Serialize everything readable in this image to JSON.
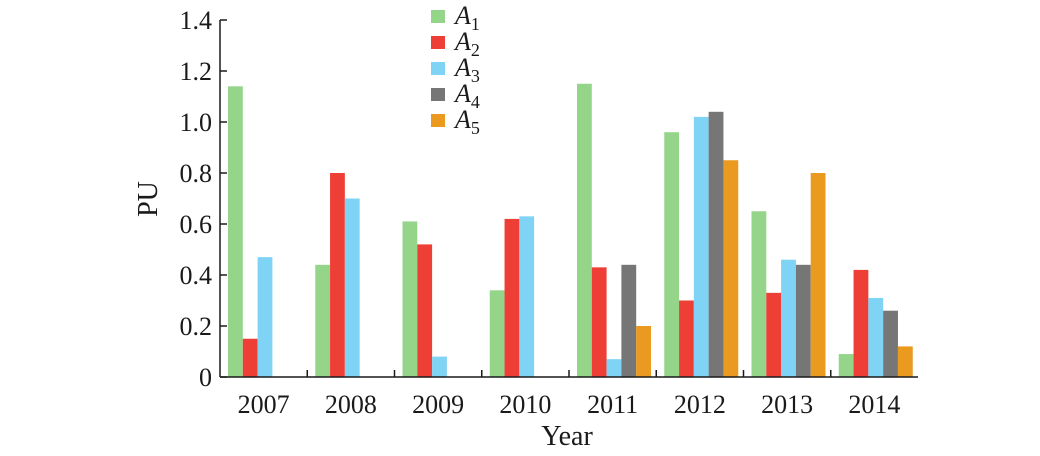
{
  "chart_data": {
    "type": "bar",
    "xlabel": "Year",
    "ylabel": "PU",
    "ylim": [
      0,
      1.4
    ],
    "yticks": [
      0,
      0.2,
      0.4,
      0.6,
      0.8,
      1.0,
      1.2,
      1.4
    ],
    "ytick_labels": [
      "0",
      "0.2",
      "0.4",
      "0.6",
      "0.8",
      "1.0",
      "1.2",
      "1.4"
    ],
    "categories": [
      "2007",
      "2008",
      "2009",
      "2010",
      "2011",
      "2012",
      "2013",
      "2014"
    ],
    "legend_position": "top-center",
    "grid": false,
    "series": [
      {
        "name": "A",
        "subscript": "1",
        "color": "#95d58a",
        "values": [
          1.14,
          0.44,
          0.61,
          0.34,
          1.15,
          0.96,
          0.65,
          0.09
        ]
      },
      {
        "name": "A",
        "subscript": "2",
        "color": "#ee3f36",
        "values": [
          0.15,
          0.8,
          0.52,
          0.62,
          0.43,
          0.3,
          0.33,
          0.42
        ]
      },
      {
        "name": "A",
        "subscript": "3",
        "color": "#7fd3f5",
        "values": [
          0.47,
          0.7,
          0.08,
          0.63,
          0.07,
          1.02,
          0.46,
          0.31
        ]
      },
      {
        "name": "A",
        "subscript": "4",
        "color": "#767676",
        "values": [
          0,
          0,
          0,
          0,
          0.44,
          1.04,
          0.44,
          0.26
        ]
      },
      {
        "name": "A",
        "subscript": "5",
        "color": "#e99a1f",
        "values": [
          0,
          0,
          0,
          0,
          0.2,
          0.85,
          0.8,
          0.12
        ]
      }
    ]
  }
}
